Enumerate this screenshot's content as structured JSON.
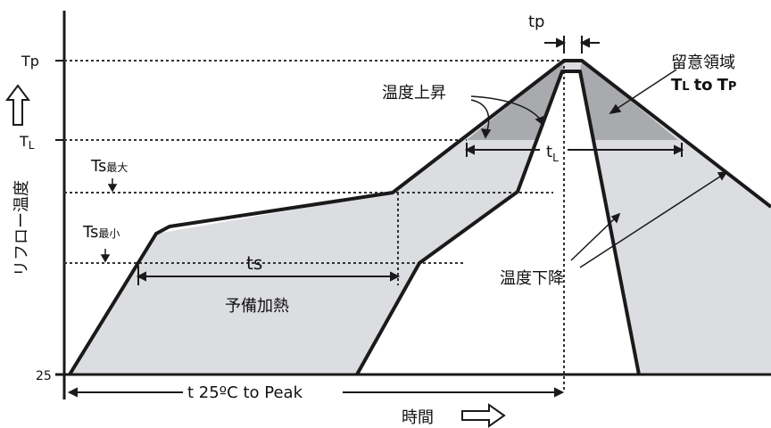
{
  "diagram": {
    "y_axis_label": "リフロー温度",
    "x_axis_label": "時間",
    "tick_tp": "Tp",
    "tick_tl_main": "T",
    "tick_tl_sub": "L",
    "tick_25": "25",
    "ts_max_main": "Ts",
    "ts_max_sub": "最大",
    "ts_min_main": "Ts",
    "ts_min_sub": "最小",
    "tp_label": "tp",
    "tl_label_main": "t",
    "tl_label_sub": "L",
    "ts_label": "ts",
    "preheat_label": "予備加熱",
    "ramp_up_label": "温度上昇",
    "ramp_down_label": "温度下降",
    "attention_title": "留意領域",
    "attention_range_tl_main": "T",
    "attention_range_tl_sub": "L",
    "attention_range_to": "to",
    "attention_range_tp_main": "T",
    "attention_range_tp_sub": "P",
    "t25_to_peak": "t  25ºC to Peak",
    "colors": {
      "profile_fill": "#dcdde0",
      "attention_fill": "#a9aaae",
      "line": "#1a1a1a"
    }
  }
}
